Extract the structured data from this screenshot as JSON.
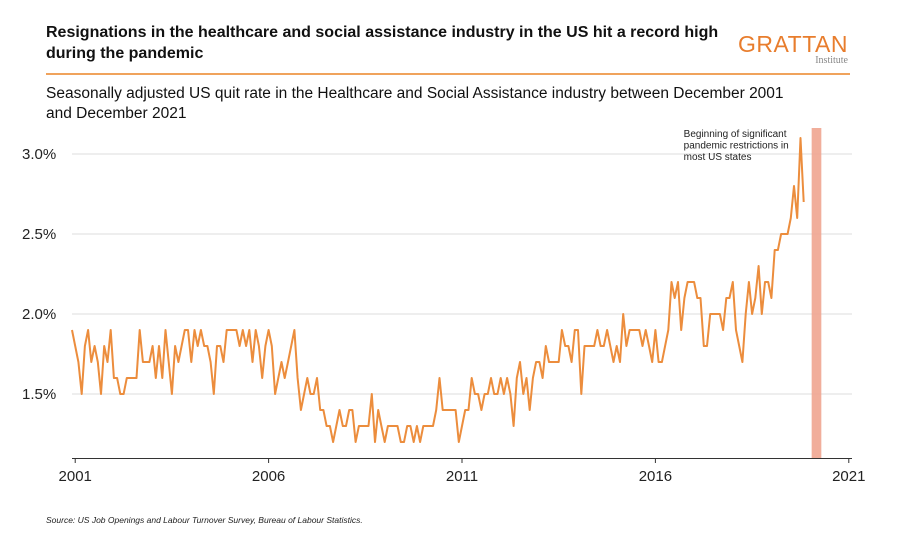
{
  "header": {
    "title": "Resignations in the healthcare and social assistance industry in the US hit a record high during the pandemic",
    "subtitle": "Seasonally adjusted US quit rate in the Healthcare and Social Assistance industry between December 2001 and December 2021"
  },
  "logo": {
    "name": "GRATTAN",
    "sub": "Institute",
    "color": "#e87d2d"
  },
  "footer": {
    "source": "Source: US Job Openings and Labour Turnover Survey, Bureau of Labour Statistics."
  },
  "chart_data": {
    "type": "line",
    "title": "Resignations in the healthcare and social assistance industry in the US hit a record high during the pandemic",
    "xlabel": "",
    "ylabel": "",
    "ylim": [
      1.1,
      3.15
    ],
    "xlim": [
      2000.917,
      2021.083
    ],
    "yticks": [
      1.5,
      2.0,
      2.5,
      3.0
    ],
    "ytick_labels": [
      "1.5%",
      "2.0%",
      "2.5%",
      "3.0%"
    ],
    "xticks": [
      2001,
      2006,
      2011,
      2016,
      2021
    ],
    "xtick_labels": [
      "2001",
      "2006",
      "2011",
      "2016",
      "2021"
    ],
    "grid": "horizontal",
    "line_color": "#ec8d3d",
    "x_start": 2000.917,
    "x_step_months": 1,
    "series": [
      {
        "name": "Quit rate (%)",
        "values": [
          1.9,
          1.8,
          1.7,
          1.5,
          1.8,
          1.9,
          1.7,
          1.8,
          1.7,
          1.5,
          1.8,
          1.7,
          1.9,
          1.6,
          1.6,
          1.5,
          1.5,
          1.6,
          1.6,
          1.6,
          1.6,
          1.9,
          1.7,
          1.7,
          1.7,
          1.8,
          1.6,
          1.8,
          1.6,
          1.9,
          1.7,
          1.5,
          1.8,
          1.7,
          1.8,
          1.9,
          1.9,
          1.7,
          1.9,
          1.8,
          1.9,
          1.8,
          1.8,
          1.7,
          1.5,
          1.8,
          1.8,
          1.7,
          1.9,
          1.9,
          1.9,
          1.9,
          1.8,
          1.9,
          1.8,
          1.9,
          1.7,
          1.9,
          1.8,
          1.6,
          1.8,
          1.9,
          1.8,
          1.5,
          1.6,
          1.7,
          1.6,
          1.7,
          1.8,
          1.9,
          1.6,
          1.4,
          1.5,
          1.6,
          1.5,
          1.5,
          1.6,
          1.4,
          1.4,
          1.3,
          1.3,
          1.2,
          1.3,
          1.4,
          1.3,
          1.3,
          1.4,
          1.4,
          1.2,
          1.3,
          1.3,
          1.3,
          1.3,
          1.5,
          1.2,
          1.4,
          1.3,
          1.2,
          1.3,
          1.3,
          1.3,
          1.3,
          1.2,
          1.2,
          1.3,
          1.3,
          1.2,
          1.3,
          1.2,
          1.3,
          1.3,
          1.3,
          1.3,
          1.4,
          1.6,
          1.4,
          1.4,
          1.4,
          1.4,
          1.4,
          1.2,
          1.3,
          1.4,
          1.4,
          1.6,
          1.5,
          1.5,
          1.4,
          1.5,
          1.5,
          1.6,
          1.5,
          1.5,
          1.6,
          1.5,
          1.6,
          1.5,
          1.3,
          1.6,
          1.7,
          1.5,
          1.6,
          1.4,
          1.6,
          1.7,
          1.7,
          1.6,
          1.8,
          1.7,
          1.7,
          1.7,
          1.7,
          1.9,
          1.8,
          1.8,
          1.7,
          1.9,
          1.9,
          1.5,
          1.8,
          1.8,
          1.8,
          1.8,
          1.9,
          1.8,
          1.8,
          1.9,
          1.8,
          1.7,
          1.8,
          1.7,
          2.0,
          1.8,
          1.9,
          1.9,
          1.9,
          1.9,
          1.8,
          1.9,
          1.8,
          1.7,
          1.9,
          1.7,
          1.7,
          1.8,
          1.9,
          2.2,
          2.1,
          2.2,
          1.9,
          2.1,
          2.2,
          2.2,
          2.2,
          2.1,
          2.1,
          1.8,
          1.8,
          2.0,
          2.0,
          2.0,
          2.0,
          1.9,
          2.1,
          2.1,
          2.2,
          1.9,
          1.8,
          1.7,
          2.0,
          2.2,
          2.0,
          2.1,
          2.3,
          2.0,
          2.2,
          2.2,
          2.1,
          2.4,
          2.4,
          2.5,
          2.5,
          2.5,
          2.6,
          2.8,
          2.6,
          3.1,
          2.7
        ]
      }
    ],
    "annotation": {
      "text": "Beginning of significant pandemic restrictions in most US states",
      "lines": [
        "Beginning of significant",
        "pandemic restrictions in",
        "most US states"
      ],
      "x_from": 2020.04,
      "x_to": 2020.29,
      "band_color": "#f0a590"
    }
  }
}
